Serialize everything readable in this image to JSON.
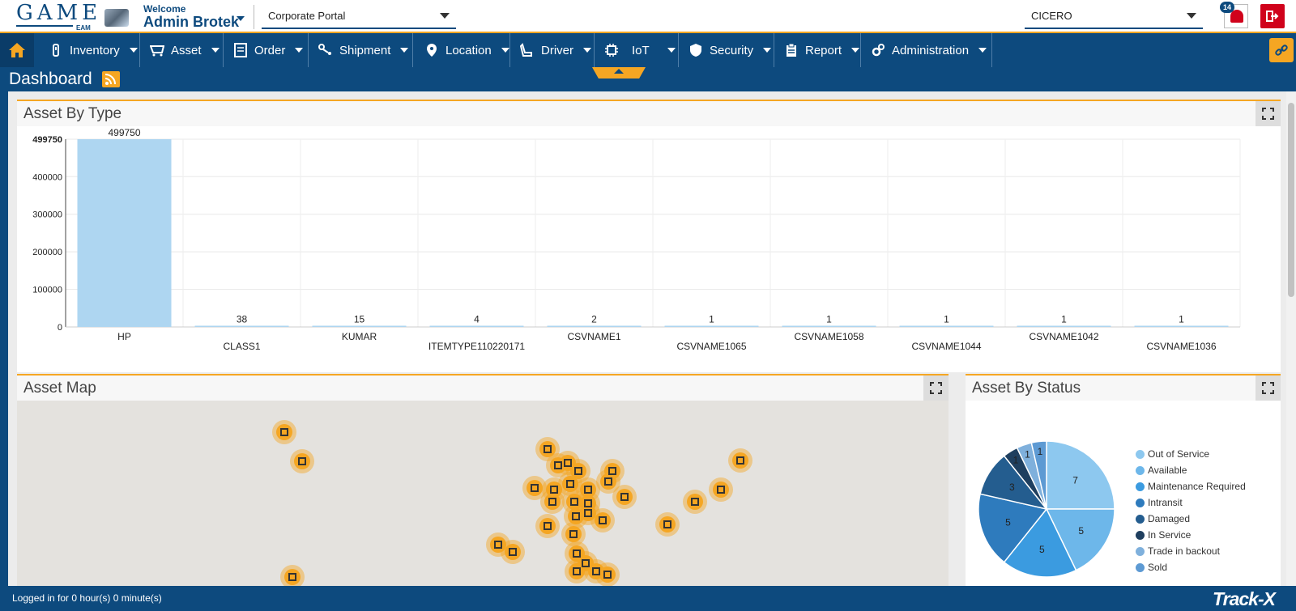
{
  "header": {
    "logo_text": "GAME",
    "logo_sub": "EAM",
    "welcome": "Welcome",
    "user_name": "Admin Brotek",
    "portal": "Corporate Portal",
    "site": "CICERO",
    "notification_count": "14"
  },
  "nav": {
    "items": [
      {
        "label": "Inventory"
      },
      {
        "label": "Asset"
      },
      {
        "label": "Order"
      },
      {
        "label": "Shipment"
      },
      {
        "label": "Location"
      },
      {
        "label": "Driver"
      },
      {
        "label": "IoT"
      },
      {
        "label": "Security"
      },
      {
        "label": "Report"
      },
      {
        "label": "Administration"
      }
    ]
  },
  "dashboard": {
    "title": "Dashboard"
  },
  "panels": {
    "asset_by_type": "Asset By Type",
    "asset_map": "Asset Map",
    "asset_by_status": "Asset By Status"
  },
  "chart_data": [
    {
      "type": "bar",
      "title": "Asset By Type",
      "categories": [
        "HP",
        "CLASS1",
        "KUMAR",
        "ITEMTYPE110220171",
        "CSVNAME1",
        "CSVNAME1065",
        "CSVNAME1058",
        "CSVNAME1044",
        "CSVNAME1042",
        "CSVNAME1036"
      ],
      "values": [
        499750,
        38,
        15,
        4,
        2,
        1,
        1,
        1,
        1,
        1
      ],
      "value_labels": [
        "499750",
        "38",
        "15",
        "4",
        "2",
        "1",
        "1",
        "1",
        "1",
        "1"
      ],
      "yticks": [
        "0",
        "100000",
        "200000",
        "300000",
        "400000",
        "499750"
      ],
      "ytick_values": [
        0,
        100000,
        200000,
        300000,
        400000,
        499750
      ],
      "ylim": [
        0,
        499750
      ],
      "color": "#aed6f1",
      "grid": true
    },
    {
      "type": "pie",
      "title": "Asset By Status",
      "labels": [
        "Out of Service",
        "Available",
        "Maintenance Required",
        "Intransit",
        "Damaged",
        "In Service",
        "Trade in backout",
        "Sold"
      ],
      "values": [
        7,
        5,
        5,
        5,
        3,
        1,
        1,
        1
      ],
      "value_labels": [
        "7",
        "5",
        "5",
        "5",
        "3",
        "1",
        "1",
        "1"
      ],
      "colors": [
        "#8dc8ef",
        "#6db7ea",
        "#3b9be0",
        "#2e7bbd",
        "#245d8f",
        "#1f3f5f",
        "#7fb0dc",
        "#5d9ad3"
      ]
    }
  ],
  "footer": {
    "status": "Logged in for 0 hour(s) 0 minute(s)",
    "brand": "Track-X"
  }
}
